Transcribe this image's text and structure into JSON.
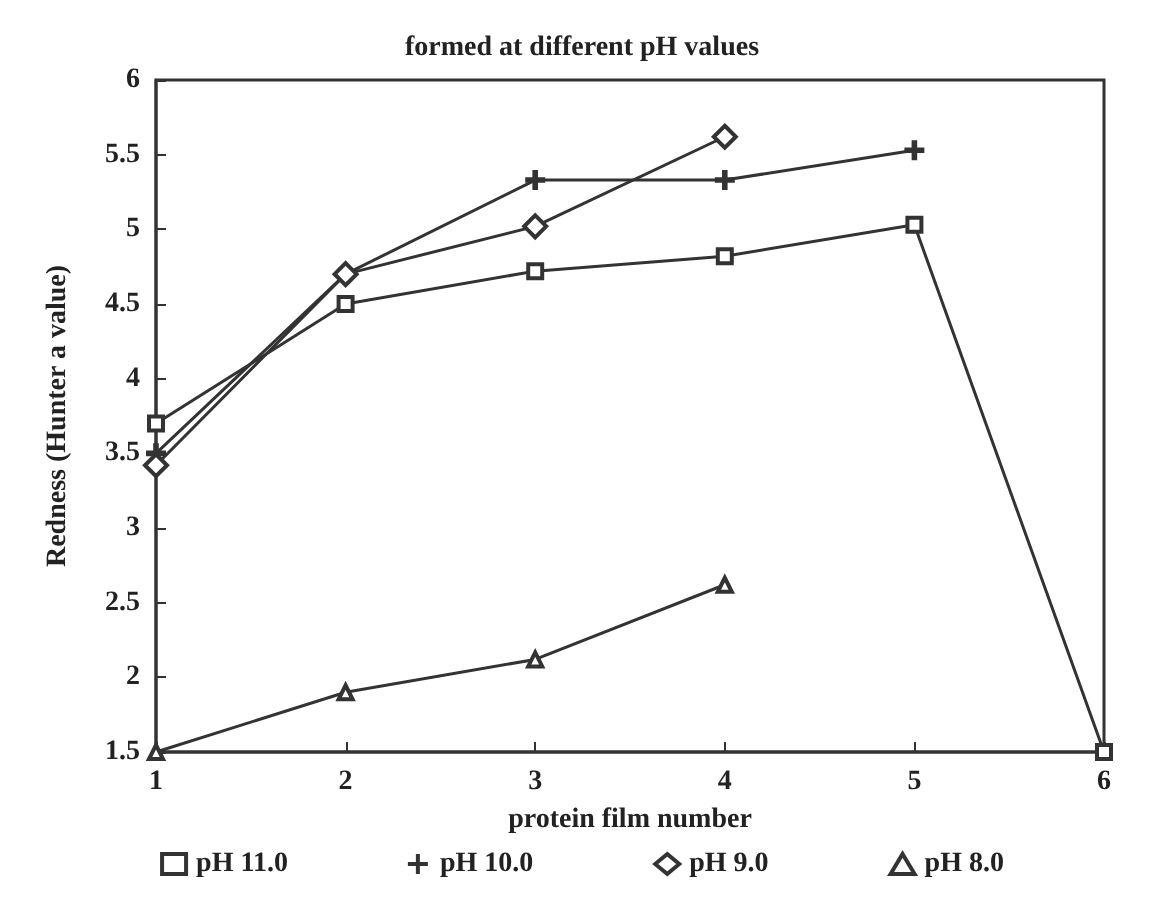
{
  "chart_data": {
    "type": "line",
    "title": "formed at different pH values",
    "xlabel": "protein film number",
    "ylabel": "Redness (Hunter a value)",
    "x": [
      1,
      2,
      3,
      4,
      5,
      6
    ],
    "xlim": [
      1,
      6
    ],
    "xticks": [
      1,
      2,
      3,
      4,
      5,
      6
    ],
    "ylim": [
      1.5,
      6
    ],
    "yticks": [
      1.5,
      2,
      2.5,
      3,
      3.5,
      4,
      4.5,
      5,
      5.5,
      6
    ],
    "grid": false,
    "legend": "bottom",
    "line_style": "solid",
    "series": [
      {
        "name": "pH 11.0",
        "color": "#333333",
        "marker": "square",
        "values": [
          3.7,
          4.5,
          4.72,
          4.82,
          5.03,
          1.5
        ]
      },
      {
        "name": "pH 10.0",
        "color": "#333333",
        "marker": "cross",
        "values": [
          3.5,
          4.7,
          5.33,
          5.33,
          5.53,
          null
        ]
      },
      {
        "name": "pH 9.0",
        "color": "#333333",
        "marker": "diamond",
        "values": [
          3.42,
          4.7,
          5.02,
          5.62,
          null,
          null
        ]
      },
      {
        "name": "pH 8.0",
        "color": "#333333",
        "marker": "triangle",
        "values": [
          1.5,
          1.9,
          2.12,
          2.62,
          null,
          null
        ]
      }
    ]
  }
}
